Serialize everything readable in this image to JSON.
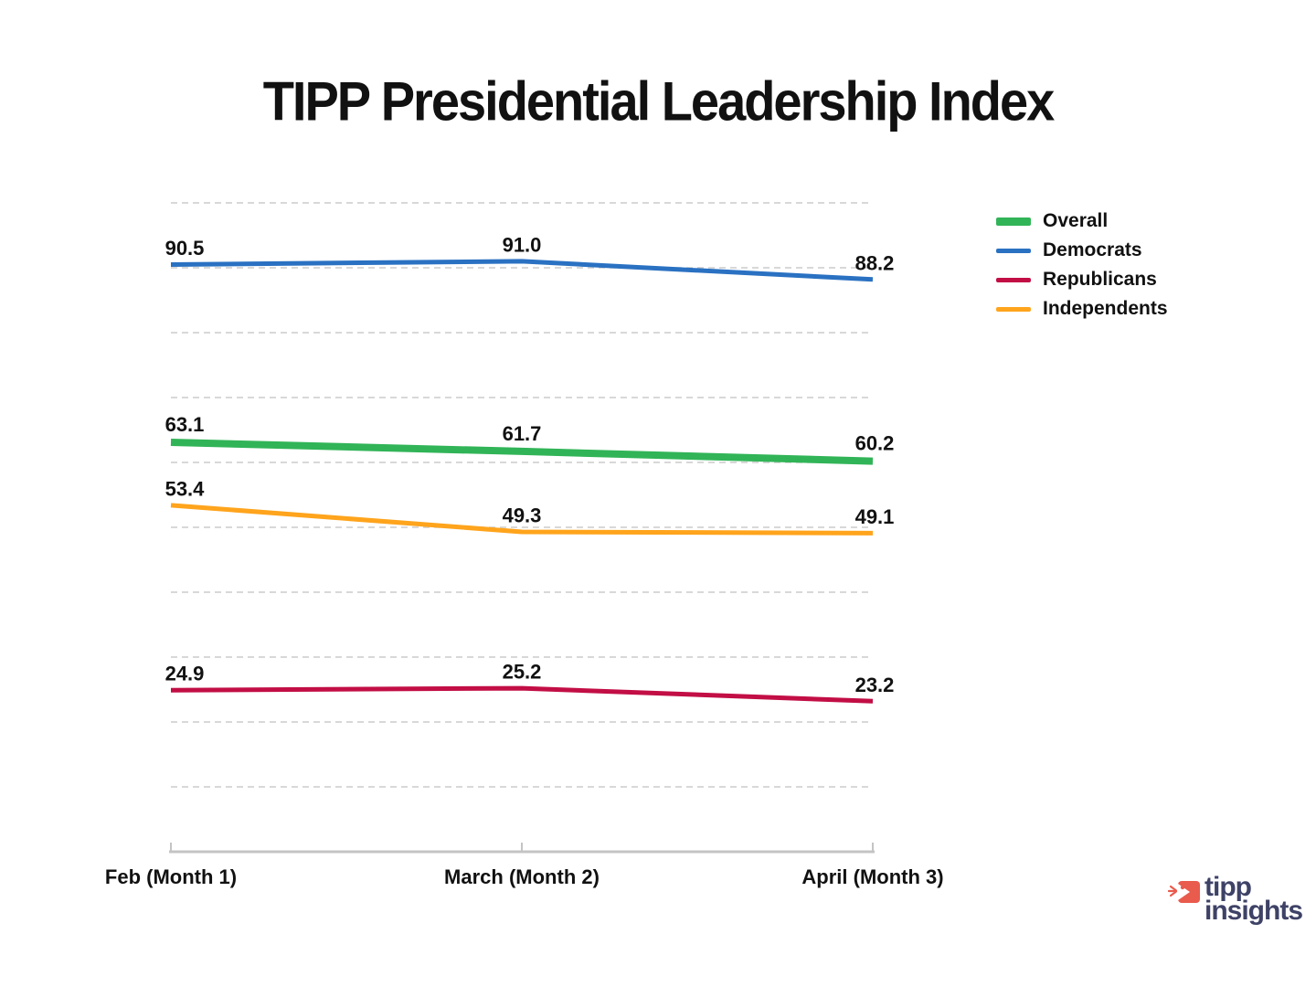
{
  "page_title": "TIPP Presidential Leadership Index",
  "chart_data": {
    "type": "line",
    "title": "TIPP Presidential Leadership Index",
    "categories": [
      "Feb (Month 1)",
      "March (Month 2)",
      "April (Month 3)"
    ],
    "series": [
      {
        "name": "Overall",
        "color": "#31B457",
        "line_width": 8,
        "values": [
          63.1,
          61.7,
          60.2
        ]
      },
      {
        "name": "Democrats",
        "color": "#2A71C2",
        "line_width": 5,
        "values": [
          90.5,
          91.0,
          88.2
        ]
      },
      {
        "name": "Republicans",
        "color": "#C20E45",
        "line_width": 5,
        "values": [
          24.9,
          25.2,
          23.2
        ]
      },
      {
        "name": "Independents",
        "color": "#FFA41C",
        "line_width": 5,
        "values": [
          53.4,
          49.3,
          49.1
        ]
      }
    ],
    "ylim": [
      0,
      100
    ],
    "grid_step": 10,
    "grid_style": "dashed horizontal gridlines, no y-axis labels",
    "grid_color": "#CCCCCC",
    "axis_color": "#C4C4C4",
    "value_label_color": "#111111",
    "value_labels": true,
    "legend_position": "top-right",
    "xlabel": "",
    "ylabel": ""
  },
  "logo": {
    "line1": "tipp",
    "line2": "insights",
    "text_color": "#3E4266",
    "icon_color": "#E95B4D",
    "icon": "tipp-insights-bird-icon"
  }
}
